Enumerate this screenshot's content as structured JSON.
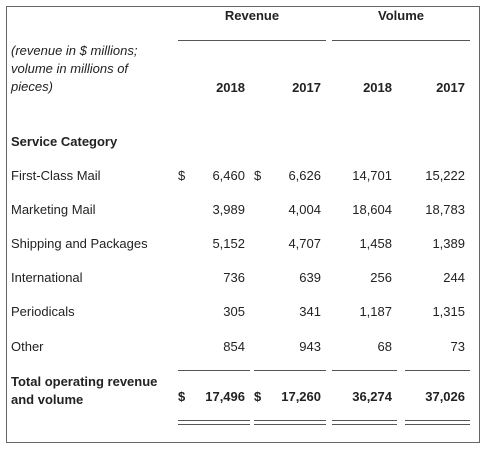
{
  "header": {
    "revenue": "Revenue",
    "volume": "Volume",
    "note": [
      "(revenue in $ millions;",
      "volume in millions of",
      "pieces)"
    ],
    "years": [
      "2018",
      "2017",
      "2018",
      "2017"
    ]
  },
  "table": {
    "section": "Service Category",
    "currency": "$",
    "rows": [
      {
        "label": "First-Class Mail",
        "values": [
          "6,460",
          "6,626",
          "14,701",
          "15,222"
        ]
      },
      {
        "label": "Marketing Mail",
        "values": [
          "3,989",
          "4,004",
          "18,604",
          "18,783"
        ]
      },
      {
        "label": "Shipping and Packages",
        "values": [
          "5,152",
          "4,707",
          "1,458",
          "1,389"
        ]
      },
      {
        "label": "International",
        "values": [
          "736",
          "639",
          "256",
          "244"
        ]
      },
      {
        "label": "Periodicals",
        "values": [
          "305",
          "341",
          "1,187",
          "1,315"
        ]
      },
      {
        "label": "Other",
        "values": [
          "854",
          "943",
          "68",
          "73"
        ]
      }
    ],
    "total": {
      "label": [
        "Total operating revenue",
        "and volume"
      ],
      "values": [
        "17,496",
        "17,260",
        "36,274",
        "37,026"
      ]
    }
  }
}
